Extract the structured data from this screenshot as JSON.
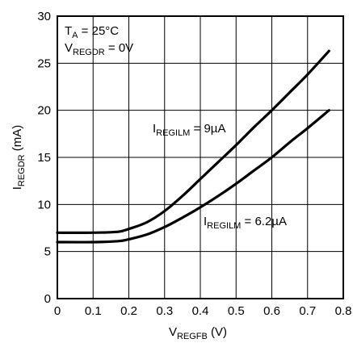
{
  "chart_data": {
    "type": "line",
    "xlabel": {
      "main": "V",
      "sub": "REGFB",
      "unit": " (V)"
    },
    "ylabel": {
      "main": "I",
      "sub": "REGDR",
      "unit": " (mA)"
    },
    "xlim": [
      0,
      0.8
    ],
    "ylim": [
      0,
      30
    ],
    "x_ticks": [
      "0",
      "0.1",
      "0.2",
      "0.3",
      "0.4",
      "0.5",
      "0.6",
      "0.7",
      "0.8"
    ],
    "y_ticks": [
      "0",
      "5",
      "10",
      "15",
      "20",
      "25",
      "30"
    ],
    "grid": true,
    "conditions": [
      {
        "main": "T",
        "sub": "A",
        "rest": " = 25°C"
      },
      {
        "main": "V",
        "sub": "REGDR",
        "rest": " = 0V"
      }
    ],
    "series": [
      {
        "name": {
          "main": "I",
          "sub": "REGILM",
          "rest": " = 9µA"
        },
        "x": [
          0,
          0.1,
          0.17,
          0.2,
          0.25,
          0.3,
          0.35,
          0.4,
          0.45,
          0.5,
          0.55,
          0.6,
          0.65,
          0.7,
          0.76
        ],
        "y": [
          7.0,
          7.0,
          7.1,
          7.4,
          8.1,
          9.3,
          10.9,
          12.7,
          14.5,
          16.3,
          18.2,
          20.0,
          21.9,
          23.8,
          26.3
        ]
      },
      {
        "name": {
          "main": "I",
          "sub": "REGILM",
          "rest": " = 6.2µA"
        },
        "x": [
          0,
          0.1,
          0.17,
          0.2,
          0.25,
          0.3,
          0.35,
          0.4,
          0.45,
          0.5,
          0.55,
          0.6,
          0.65,
          0.7,
          0.76
        ],
        "y": [
          6.0,
          6.0,
          6.1,
          6.3,
          6.8,
          7.6,
          8.6,
          9.7,
          10.9,
          12.2,
          13.6,
          15.0,
          16.6,
          18.1,
          20.0
        ]
      }
    ]
  }
}
